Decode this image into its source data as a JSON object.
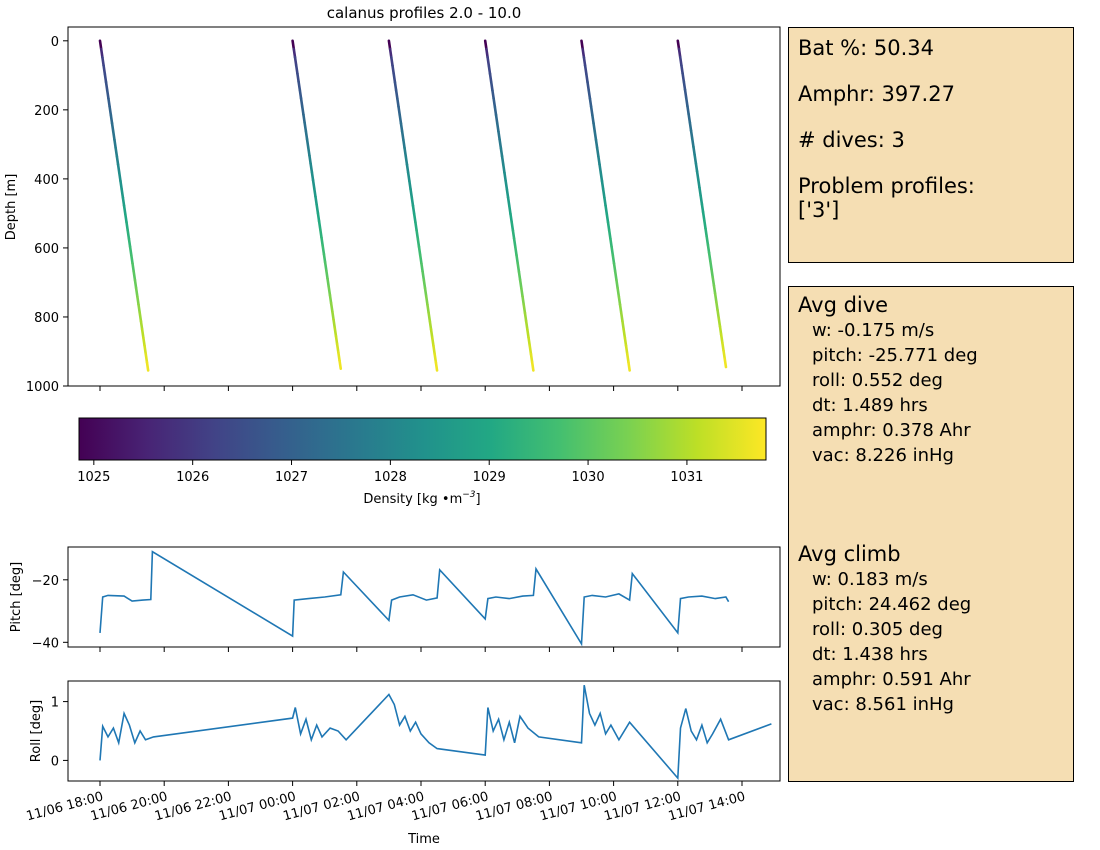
{
  "chart_data": [
    {
      "type": "scatter",
      "title": "calanus profiles 2.0 - 10.0",
      "ylabel": "Depth [m]",
      "ylim": [
        1000,
        -40
      ],
      "yticks": [
        0,
        200,
        400,
        600,
        800,
        1000
      ],
      "color_by": "Density",
      "colormap": "viridis",
      "profiles": [
        {
          "start_time": "11/06 18:00",
          "end_time": "11/06 19:30",
          "top_depth": 0,
          "bottom_depth": 955
        },
        {
          "start_time": "11/07 00:00",
          "end_time": "11/07 01:30",
          "top_depth": 0,
          "bottom_depth": 950
        },
        {
          "start_time": "11/07 03:00",
          "end_time": "11/07 04:30",
          "top_depth": 0,
          "bottom_depth": 955
        },
        {
          "start_time": "11/07 06:00",
          "end_time": "11/07 07:30",
          "top_depth": 0,
          "bottom_depth": 955
        },
        {
          "start_time": "11/07 09:00",
          "end_time": "11/07 10:30",
          "top_depth": 0,
          "bottom_depth": 955
        },
        {
          "start_time": "11/07 12:00",
          "end_time": "11/07 13:30",
          "top_depth": 0,
          "bottom_depth": 945
        }
      ],
      "colorbar": {
        "label": "Density [kg •m",
        "label_exp": "−3",
        "label_tail": "]",
        "range": [
          1024.85,
          1031.8
        ],
        "ticks": [
          1025,
          1026,
          1027,
          1028,
          1029,
          1030,
          1031
        ]
      }
    },
    {
      "type": "line",
      "ylabel": "Pitch [deg]",
      "ylim": [
        -41.5,
        -9.5
      ],
      "yticks": [
        -20,
        -40
      ],
      "series": [
        {
          "x": [
            "11/06 18:00",
            "11/06 18:05",
            "11/06 18:15",
            "11/06 18:45",
            "11/06 19:00",
            "11/06 19:20",
            "11/06 19:35",
            "11/06 19:38",
            "11/07 00:00",
            "11/07 00:03",
            "11/07 00:30",
            "11/07 01:00",
            "11/07 01:30",
            "11/07 01:35",
            "11/07 03:00",
            "11/07 03:05",
            "11/07 03:20",
            "11/07 03:45",
            "11/07 04:10",
            "11/07 04:30",
            "11/07 04:35",
            "11/07 06:00",
            "11/07 06:05",
            "11/07 06:20",
            "11/07 06:45",
            "11/07 07:10",
            "11/07 07:30",
            "11/07 07:35",
            "11/07 09:00",
            "11/07 09:05",
            "11/07 09:20",
            "11/07 09:45",
            "11/07 10:10",
            "11/07 10:30",
            "11/07 10:35",
            "11/07 12:00",
            "11/07 12:05",
            "11/07 12:20",
            "11/07 12:45",
            "11/07 13:10",
            "11/07 13:30",
            "11/07 13:35"
          ],
          "y": [
            -37,
            -25.5,
            -25,
            -25.2,
            -26.8,
            -26.5,
            -26.3,
            -11,
            -38,
            -26.5,
            -26,
            -25.5,
            -24.8,
            -17.5,
            -33,
            -26.5,
            -25.5,
            -24.8,
            -26.5,
            -25.8,
            -16.8,
            -32.5,
            -26,
            -25.5,
            -26,
            -25.2,
            -25,
            -16.5,
            -40.5,
            -25.5,
            -25,
            -25.5,
            -24.5,
            -26.5,
            -18,
            -37,
            -26,
            -25.5,
            -25.2,
            -26,
            -25.5,
            -27
          ]
        }
      ]
    },
    {
      "type": "line",
      "ylabel": "Roll [deg]",
      "xlabel": "Time",
      "ylim": [
        -0.35,
        1.35
      ],
      "yticks": [
        0,
        1
      ],
      "xticks": [
        "11/06 18:00",
        "11/06 20:00",
        "11/06 22:00",
        "11/07 00:00",
        "11/07 02:00",
        "11/07 04:00",
        "11/07 06:00",
        "11/07 08:00",
        "11/07 10:00",
        "11/07 12:00",
        "11/07 14:00"
      ],
      "series": [
        {
          "x": [
            "11/06 18:00",
            "11/06 18:05",
            "11/06 18:15",
            "11/06 18:25",
            "11/06 18:35",
            "11/06 18:45",
            "11/06 18:55",
            "11/06 19:05",
            "11/06 19:15",
            "11/06 19:25",
            "11/06 19:40",
            "11/07 00:00",
            "11/07 00:05",
            "11/07 00:15",
            "11/07 00:25",
            "11/07 00:35",
            "11/07 00:45",
            "11/07 00:55",
            "11/07 01:10",
            "11/07 01:25",
            "11/07 01:40",
            "11/07 03:00",
            "11/07 03:10",
            "11/07 03:20",
            "11/07 03:30",
            "11/07 03:40",
            "11/07 03:50",
            "11/07 04:00",
            "11/07 04:15",
            "11/07 04:30",
            "11/07 06:00",
            "11/07 06:05",
            "11/07 06:15",
            "11/07 06:25",
            "11/07 06:35",
            "11/07 06:45",
            "11/07 06:55",
            "11/07 07:05",
            "11/07 07:20",
            "11/07 07:40",
            "11/07 09:00",
            "11/07 09:05",
            "11/07 09:15",
            "11/07 09:25",
            "11/07 09:35",
            "11/07 09:45",
            "11/07 09:55",
            "11/07 10:10",
            "11/07 10:30",
            "11/07 12:00",
            "11/07 12:05",
            "11/07 12:15",
            "11/07 12:25",
            "11/07 12:35",
            "11/07 12:45",
            "11/07 12:55",
            "11/07 13:05",
            "11/07 13:20",
            "11/07 13:35",
            "11/07 14:55"
          ],
          "y": [
            0,
            0.58,
            0.4,
            0.55,
            0.3,
            0.8,
            0.6,
            0.3,
            0.5,
            0.35,
            0.4,
            0.72,
            0.9,
            0.45,
            0.7,
            0.35,
            0.6,
            0.4,
            0.55,
            0.5,
            0.35,
            1.12,
            0.95,
            0.6,
            0.75,
            0.5,
            0.65,
            0.45,
            0.3,
            0.2,
            0.09,
            0.9,
            0.5,
            0.7,
            0.35,
            0.65,
            0.3,
            0.75,
            0.55,
            0.4,
            0.3,
            1.28,
            0.8,
            0.6,
            0.8,
            0.45,
            0.6,
            0.35,
            0.65,
            -0.3,
            0.55,
            0.88,
            0.5,
            0.35,
            0.6,
            0.3,
            0.45,
            0.7,
            0.35,
            0.62
          ]
        }
      ]
    }
  ],
  "status": {
    "battery": "Bat %: 50.34",
    "amphr": "Amphr: 397.27",
    "dives": "# dives: 3",
    "problem": "Problem profiles:\n['3']"
  },
  "avg_dive": {
    "title": "Avg dive",
    "lines": [
      "w: -0.175 m/s",
      "pitch: -25.771 deg",
      "roll: 0.552 deg",
      "dt: 1.489 hrs",
      "amphr: 0.378 Ahr",
      "vac: 8.226 inHg"
    ]
  },
  "avg_climb": {
    "title": "Avg climb",
    "lines": [
      "w: 0.183 m/s",
      "pitch: 24.462 deg",
      "roll: 0.305 deg",
      "dt: 1.438 hrs",
      "amphr: 0.591 Ahr",
      "vac: 8.561 inHg"
    ]
  }
}
